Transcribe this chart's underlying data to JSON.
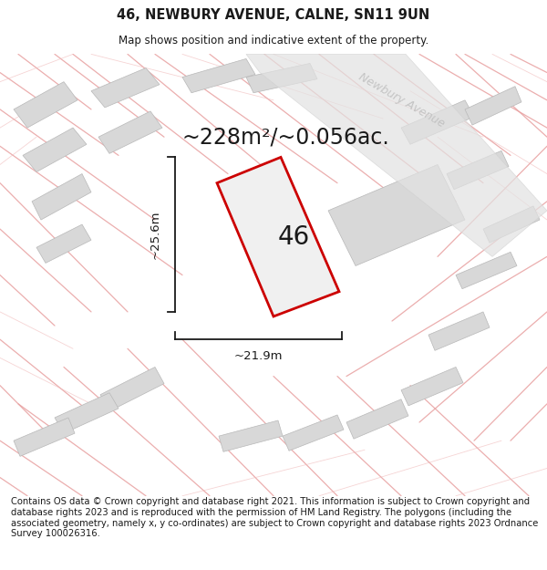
{
  "title_line1": "46, NEWBURY AVENUE, CALNE, SN11 9UN",
  "title_line2": "Map shows position and indicative extent of the property.",
  "area_text": "~228m²/~0.056ac.",
  "label_46": "46",
  "dim_height": "~25.6m",
  "dim_width": "~21.9m",
  "street_name": "Newbury Avenue",
  "footer_text": "Contains OS data © Crown copyright and database right 2021. This information is subject to Crown copyright and database rights 2023 and is reproduced with the permission of HM Land Registry. The polygons (including the associated geometry, namely x, y co-ordinates) are subject to Crown copyright and database rights 2023 Ordnance Survey 100026316.",
  "bg_color": "#ebebeb",
  "plot_outline_color": "#cc0000",
  "dim_line_color": "#1a1a1a",
  "street_text_color": "#c0c0c0",
  "neighbor_fill": "#d8d8d8",
  "neighbor_stroke": "#b8b8b8",
  "pink_line_color": "#e8a0a0",
  "pink_line_color2": "#f0b8b8",
  "title_fontsize": 10.5,
  "subtitle_fontsize": 8.5,
  "area_fontsize": 17,
  "label_fontsize": 20,
  "dim_fontsize": 9.5,
  "footer_fontsize": 7.2
}
